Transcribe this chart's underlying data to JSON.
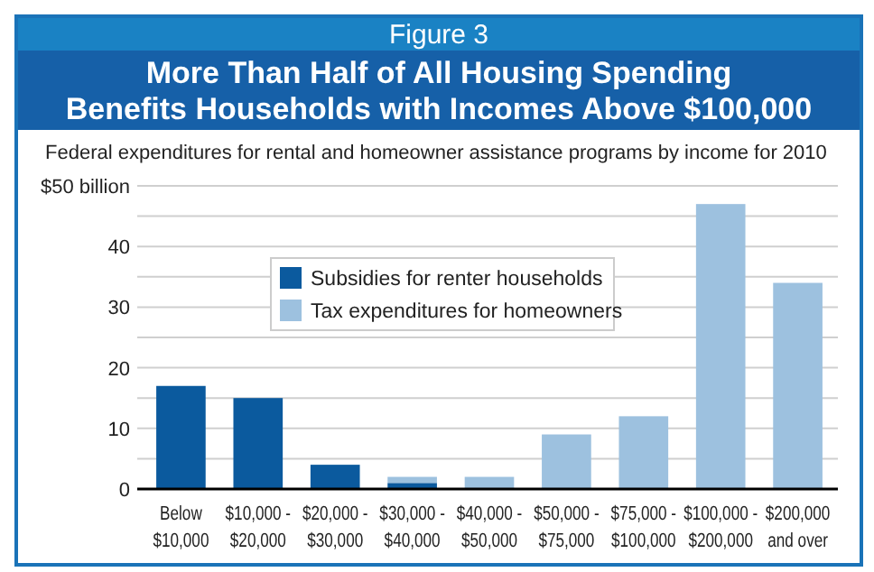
{
  "chart_data": {
    "type": "bar",
    "stacked": true,
    "annotations": [
      "Figure 3"
    ],
    "title": "More Than Half of All Housing Spending Benefits Households with Incomes Above $100,000",
    "subtitle": "Federal expenditures for rental and homeowner assistance programs by income for 2010",
    "categories": [
      "Below $10,000",
      "$10,000 - $20,000",
      "$20,000 - $30,000",
      "$30,000 - $40,000",
      "$40,000 - $50,000",
      "$50,000 - $75,000",
      "$75,000 - $100,000",
      "$100,000 - $200,000",
      "$200,000 and over"
    ],
    "series": [
      {
        "name": "Subsidies for renter households",
        "color": "#0b5a9e",
        "values": [
          17,
          15,
          4,
          1,
          0,
          0,
          0,
          0,
          0
        ]
      },
      {
        "name": "Tax expenditures for homeowners",
        "color": "#9dc1df",
        "values": [
          0,
          0,
          0,
          1,
          2,
          9,
          12,
          47,
          34
        ]
      }
    ],
    "ylim": [
      0,
      50
    ],
    "yticks": [
      0,
      {
        "value": 5,
        "label": null
      },
      10,
      {
        "value": 15,
        "label": null
      },
      20,
      {
        "value": 25,
        "label": null
      },
      30,
      {
        "value": 35,
        "label": null
      },
      40,
      {
        "value": 45,
        "label": null
      },
      {
        "value": 50,
        "label": "$50 billion"
      }
    ],
    "grid": true,
    "legend": "top"
  }
}
